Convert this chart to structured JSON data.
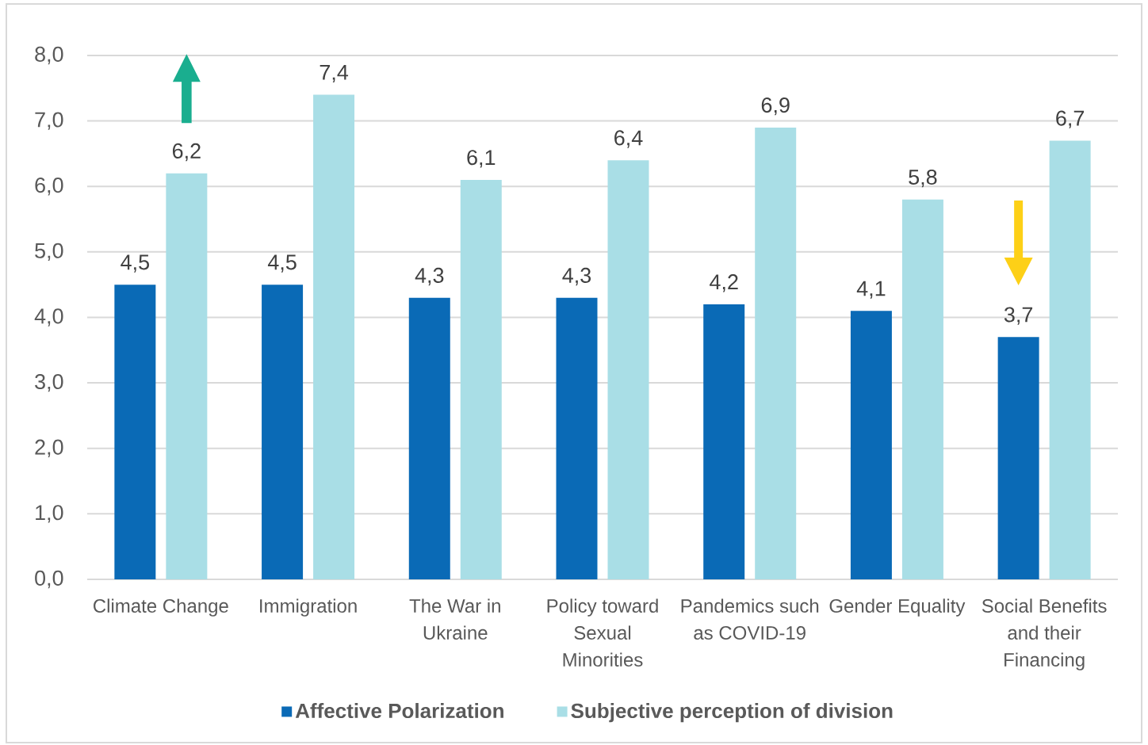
{
  "chart_data": {
    "type": "bar",
    "categories": [
      "Climate Change",
      "Immigration",
      "The War in Ukraine",
      "Policy toward Sexual Minorities",
      "Pandemics such as COVID-19",
      "Gender Equality",
      "Social Benefits and their Financing"
    ],
    "series": [
      {
        "name": "Affective Polarization",
        "color": "#0a6ab6",
        "values": [
          4.5,
          4.5,
          4.3,
          4.3,
          4.2,
          4.1,
          3.7
        ],
        "value_labels": [
          "4,5",
          "4,5",
          "4,3",
          "4,3",
          "4,2",
          "4,1",
          "3,7"
        ]
      },
      {
        "name": "Subjective perception of division",
        "color": "#a9dee6",
        "values": [
          6.2,
          7.4,
          6.1,
          6.4,
          6.9,
          5.8,
          6.7
        ],
        "value_labels": [
          "6,2",
          "7,4",
          "6,1",
          "6,4",
          "6,9",
          "5,8",
          "6,7"
        ]
      }
    ],
    "ylim": [
      0,
      8
    ],
    "yticks": [
      {
        "value": 0,
        "label": "0,0"
      },
      {
        "value": 1,
        "label": "1,0"
      },
      {
        "value": 2,
        "label": "2,0"
      },
      {
        "value": 3,
        "label": "3,0"
      },
      {
        "value": 4,
        "label": "4,0"
      },
      {
        "value": 5,
        "label": "5,0"
      },
      {
        "value": 6,
        "label": "6,0"
      },
      {
        "value": 7,
        "label": "7,0"
      },
      {
        "value": 8,
        "label": "8,0"
      }
    ],
    "grid": "y",
    "legend": "bottom"
  }
}
